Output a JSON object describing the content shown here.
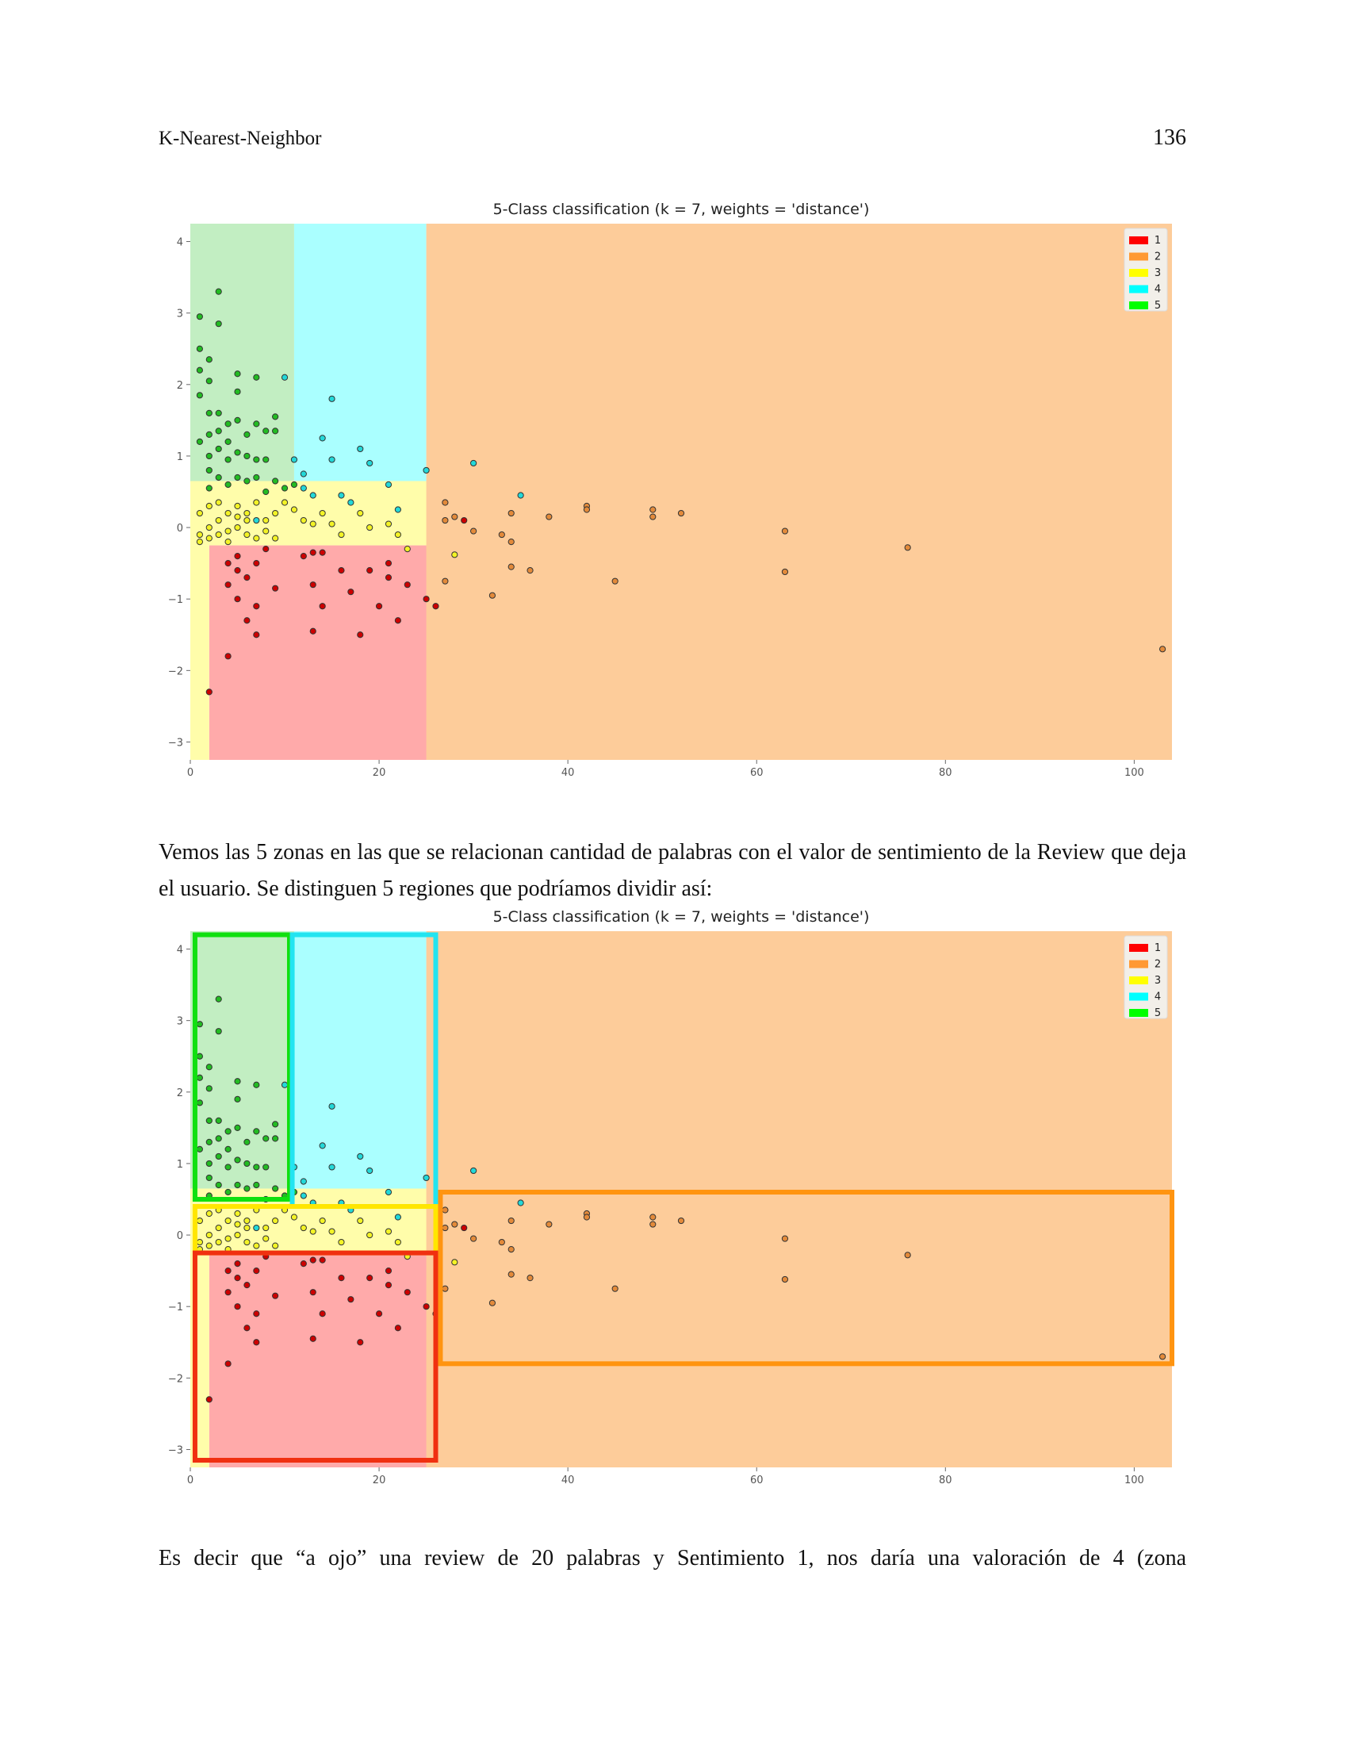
{
  "page": {
    "running_head": "K-Nearest-Neighbor",
    "page_number": "136"
  },
  "paragraphs": [
    "Vemos las 5 zonas en las que se relacionan cantidad de palabras con el valor de sentimiento de la Review que deja el usuario. Se distinguen 5 regiones que podríamos dividir así:",
    "Es decir que “a ojo” una review de 20 palabras y Sentimiento 1, nos daría una valoración de 4 (zona"
  ],
  "colors": {
    "region_1": "#ffaaaa",
    "region_2": "#fdcc9a",
    "region_3": "#fffdaa",
    "region_4": "#aaffff",
    "region_5": "#c2eec2",
    "point_1": "#cc0000",
    "point_2": "#e38a3a",
    "point_3": "#f3f325",
    "point_4": "#22d8d8",
    "point_5": "#22bb22",
    "legend_1": "#ff0000",
    "legend_2": "#ff9933",
    "legend_3": "#ffff00",
    "legend_4": "#00ffff",
    "legend_5": "#00ff00",
    "box_green": "#10e010",
    "box_cyan": "#22e4f0",
    "box_yellow": "#ffe600",
    "box_red": "#f03010",
    "box_orange": "#ff9410"
  },
  "chart_data": [
    {
      "type": "scatter",
      "title": "5-Class classification (k = 7, weights = 'distance')",
      "xlim": [
        0,
        104
      ],
      "ylim": [
        -3.25,
        4.25
      ],
      "xticks": [
        0,
        20,
        40,
        60,
        80,
        100
      ],
      "yticks": [
        4,
        3,
        2,
        1,
        0,
        -1,
        -2,
        -3
      ],
      "ytick_labels": [
        "4",
        "3",
        "2",
        "1",
        "0",
        "−1",
        "−2",
        "−3"
      ],
      "grid": false,
      "legend": {
        "position": "top-right",
        "entries": [
          "1",
          "2",
          "3",
          "4",
          "5"
        ]
      },
      "decision_regions": [
        {
          "class": "5",
          "x": [
            0,
            11
          ],
          "y": [
            0.65,
            4.25
          ]
        },
        {
          "class": "4",
          "x": [
            11,
            25
          ],
          "y": [
            0.45,
            4.25
          ]
        },
        {
          "class": "3",
          "x": [
            0,
            26
          ],
          "y": [
            -0.25,
            0.65
          ]
        },
        {
          "class": "1",
          "x": [
            2,
            26
          ],
          "y": [
            -3.25,
            -0.25
          ]
        },
        {
          "class": "2",
          "x": [
            25,
            104
          ],
          "y": [
            -3.25,
            4.25
          ]
        }
      ],
      "series": [
        {
          "name": "1",
          "points": [
            [
              2,
              -2.3
            ],
            [
              4,
              -1.8
            ],
            [
              4,
              -0.5
            ],
            [
              4,
              -0.8
            ],
            [
              5,
              -0.6
            ],
            [
              5,
              -1.0
            ],
            [
              5,
              -0.4
            ],
            [
              6,
              -0.7
            ],
            [
              6,
              -1.3
            ],
            [
              7,
              -1.1
            ],
            [
              7,
              -1.5
            ],
            [
              7,
              -0.5
            ],
            [
              8,
              -0.3
            ],
            [
              9,
              -0.85
            ],
            [
              12,
              -0.4
            ],
            [
              13,
              -0.35
            ],
            [
              13,
              -0.8
            ],
            [
              13,
              -1.45
            ],
            [
              14,
              -1.1
            ],
            [
              14,
              -0.35
            ],
            [
              16,
              -0.6
            ],
            [
              17,
              -0.9
            ],
            [
              18,
              -1.5
            ],
            [
              19,
              -0.6
            ],
            [
              20,
              -1.1
            ],
            [
              21,
              -0.7
            ],
            [
              21,
              -0.5
            ],
            [
              22,
              -1.3
            ],
            [
              23,
              -0.8
            ],
            [
              25,
              -1.0
            ],
            [
              26,
              -1.1
            ],
            [
              29,
              0.1
            ]
          ]
        },
        {
          "name": "2",
          "points": [
            [
              27,
              0.35
            ],
            [
              27,
              0.1
            ],
            [
              28,
              0.15
            ],
            [
              30,
              -0.05
            ],
            [
              27,
              -0.75
            ],
            [
              32,
              -0.95
            ],
            [
              33,
              -0.1
            ],
            [
              34,
              0.2
            ],
            [
              34,
              -0.2
            ],
            [
              34,
              -0.55
            ],
            [
              36,
              -0.6
            ],
            [
              38,
              0.15
            ],
            [
              42,
              0.3
            ],
            [
              42,
              0.25
            ],
            [
              45,
              -0.75
            ],
            [
              49,
              0.25
            ],
            [
              49,
              0.15
            ],
            [
              52,
              0.2
            ],
            [
              63,
              -0.05
            ],
            [
              63,
              -0.62
            ],
            [
              76,
              -0.28
            ],
            [
              103,
              -1.7
            ]
          ]
        },
        {
          "name": "3",
          "points": [
            [
              1,
              0.2
            ],
            [
              1,
              -0.1
            ],
            [
              1,
              -0.2
            ],
            [
              2,
              0.0
            ],
            [
              2,
              0.3
            ],
            [
              2,
              -0.15
            ],
            [
              3,
              0.1
            ],
            [
              3,
              -0.1
            ],
            [
              3,
              0.35
            ],
            [
              4,
              0.2
            ],
            [
              4,
              -0.05
            ],
            [
              4,
              -0.2
            ],
            [
              5,
              0.3
            ],
            [
              5,
              0.0
            ],
            [
              5,
              0.15
            ],
            [
              6,
              -0.1
            ],
            [
              6,
              0.2
            ],
            [
              6,
              0.1
            ],
            [
              7,
              -0.15
            ],
            [
              7,
              0.35
            ],
            [
              8,
              0.1
            ],
            [
              8,
              -0.05
            ],
            [
              9,
              0.2
            ],
            [
              9,
              -0.15
            ],
            [
              10,
              0.35
            ],
            [
              11,
              0.25
            ],
            [
              12,
              0.1
            ],
            [
              13,
              0.05
            ],
            [
              14,
              0.2
            ],
            [
              15,
              0.05
            ],
            [
              16,
              -0.1
            ],
            [
              18,
              0.2
            ],
            [
              19,
              0.0
            ],
            [
              21,
              0.05
            ],
            [
              22,
              -0.1
            ],
            [
              23,
              -0.3
            ],
            [
              28,
              -0.38
            ]
          ]
        },
        {
          "name": "4",
          "points": [
            [
              7,
              0.1
            ],
            [
              10,
              2.1
            ],
            [
              11,
              0.95
            ],
            [
              12,
              0.75
            ],
            [
              12,
              0.55
            ],
            [
              13,
              0.45
            ],
            [
              14,
              1.25
            ],
            [
              15,
              1.8
            ],
            [
              15,
              0.95
            ],
            [
              16,
              0.45
            ],
            [
              17,
              0.35
            ],
            [
              18,
              1.1
            ],
            [
              19,
              0.9
            ],
            [
              21,
              0.6
            ],
            [
              22,
              0.25
            ],
            [
              25,
              0.8
            ],
            [
              30,
              0.9
            ],
            [
              35,
              0.45
            ]
          ]
        },
        {
          "name": "5",
          "points": [
            [
              1,
              2.95
            ],
            [
              1,
              2.5
            ],
            [
              1,
              2.2
            ],
            [
              1,
              1.85
            ],
            [
              1,
              1.2
            ],
            [
              2,
              2.35
            ],
            [
              2,
              2.05
            ],
            [
              2,
              1.6
            ],
            [
              2,
              1.3
            ],
            [
              2,
              1.0
            ],
            [
              2,
              0.8
            ],
            [
              2,
              0.55
            ],
            [
              3,
              3.3
            ],
            [
              3,
              2.85
            ],
            [
              3,
              1.6
            ],
            [
              3,
              1.35
            ],
            [
              3,
              1.1
            ],
            [
              3,
              0.7
            ],
            [
              4,
              1.45
            ],
            [
              4,
              1.2
            ],
            [
              4,
              0.95
            ],
            [
              4,
              0.6
            ],
            [
              5,
              2.15
            ],
            [
              5,
              1.9
            ],
            [
              5,
              1.5
            ],
            [
              5,
              1.05
            ],
            [
              5,
              0.7
            ],
            [
              6,
              1.3
            ],
            [
              6,
              1.0
            ],
            [
              6,
              0.65
            ],
            [
              7,
              2.1
            ],
            [
              7,
              1.45
            ],
            [
              7,
              0.95
            ],
            [
              7,
              0.7
            ],
            [
              8,
              1.35
            ],
            [
              8,
              0.95
            ],
            [
              8,
              0.5
            ],
            [
              9,
              1.55
            ],
            [
              9,
              1.35
            ],
            [
              9,
              0.65
            ],
            [
              10,
              0.55
            ],
            [
              11,
              0.6
            ]
          ]
        }
      ],
      "annotations": []
    },
    {
      "type": "scatter",
      "title": "5-Class classification (k = 7, weights = 'distance')",
      "xlim": [
        0,
        104
      ],
      "ylim": [
        -3.25,
        4.25
      ],
      "xticks": [
        0,
        20,
        40,
        60,
        80,
        100
      ],
      "yticks": [
        4,
        3,
        2,
        1,
        0,
        -1,
        -2,
        -3
      ],
      "ytick_labels": [
        "4",
        "3",
        "2",
        "1",
        "0",
        "−1",
        "−2",
        "−3"
      ],
      "grid": false,
      "legend": {
        "position": "top-right",
        "entries": [
          "1",
          "2",
          "3",
          "4",
          "5"
        ]
      },
      "decision_regions": [
        {
          "class": "5",
          "x": [
            0,
            11
          ],
          "y": [
            0.65,
            4.25
          ]
        },
        {
          "class": "4",
          "x": [
            11,
            25
          ],
          "y": [
            0.45,
            4.25
          ]
        },
        {
          "class": "3",
          "x": [
            0,
            26
          ],
          "y": [
            -0.25,
            0.65
          ]
        },
        {
          "class": "1",
          "x": [
            2,
            26
          ],
          "y": [
            -3.25,
            -0.25
          ]
        },
        {
          "class": "2",
          "x": [
            25,
            104
          ],
          "y": [
            -3.25,
            4.25
          ]
        }
      ],
      "highlight_boxes": [
        {
          "class": "5",
          "x": [
            0.5,
            10.5
          ],
          "y": [
            0.5,
            4.2
          ]
        },
        {
          "class": "4",
          "x": [
            10.8,
            26
          ],
          "y": [
            0.4,
            4.2
          ]
        },
        {
          "class": "3",
          "x": [
            0.5,
            26
          ],
          "y": [
            -0.25,
            0.4
          ]
        },
        {
          "class": "1",
          "x": [
            0.5,
            26
          ],
          "y": [
            -3.15,
            -0.25
          ]
        },
        {
          "class": "2",
          "x": [
            26.5,
            104
          ],
          "y": [
            -1.8,
            0.6
          ]
        }
      ],
      "series_ref": 0
    }
  ]
}
